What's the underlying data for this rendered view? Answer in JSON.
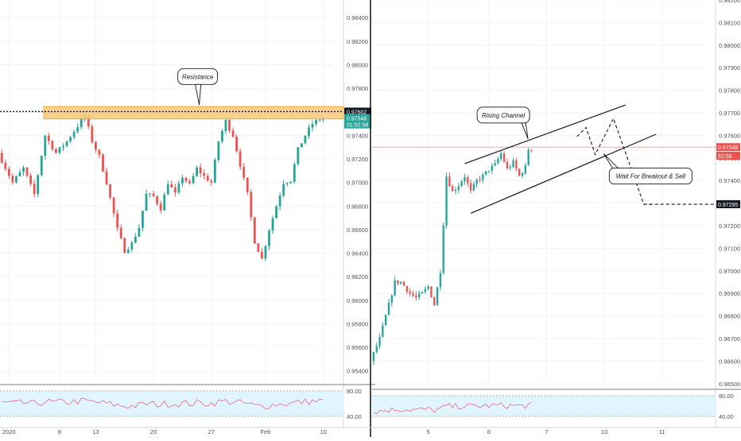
{
  "chart_data": [
    {
      "type": "candlestick",
      "title": "",
      "ylim": [
        0.9531,
        0.9855
      ],
      "yticks": [
        0.954,
        0.956,
        0.958,
        0.96,
        0.962,
        0.964,
        0.966,
        0.968,
        0.97,
        0.972,
        0.974,
        0.976,
        0.978,
        0.98,
        0.982,
        0.984
      ],
      "ytick_labels": [
        "0.95400",
        "0.95600",
        "0.95800",
        "0.96000",
        "0.96200",
        "0.96400",
        "0.96600",
        "0.96800",
        "0.97000",
        "0.97200",
        "0.97400",
        "0.97600",
        "0.97800",
        "0.98000",
        "0.98200",
        "0.98400"
      ],
      "xticks": [
        {
          "label": "2020",
          "i": 2
        },
        {
          "label": "8",
          "i": 16
        },
        {
          "label": "13",
          "i": 26
        },
        {
          "label": "20",
          "i": 42
        },
        {
          "label": "27",
          "i": 58
        },
        {
          "label": "Feb",
          "i": 73
        },
        {
          "label": "10",
          "i": 89
        }
      ],
      "price_points": [
        [
          0,
          0.9725
        ],
        [
          4,
          0.97
        ],
        [
          7,
          0.9712
        ],
        [
          10,
          0.969
        ],
        [
          13,
          0.974
        ],
        [
          16,
          0.9725
        ],
        [
          19,
          0.9735
        ],
        [
          22,
          0.9748
        ],
        [
          24,
          0.9757
        ],
        [
          26,
          0.9735
        ],
        [
          28,
          0.9722
        ],
        [
          30,
          0.97
        ],
        [
          33,
          0.966
        ],
        [
          35,
          0.9642
        ],
        [
          37,
          0.9648
        ],
        [
          39,
          0.9662
        ],
        [
          41,
          0.969
        ],
        [
          43,
          0.9688
        ],
        [
          45,
          0.9678
        ],
        [
          47,
          0.97
        ],
        [
          49,
          0.969
        ],
        [
          51,
          0.9705
        ],
        [
          53,
          0.9698
        ],
        [
          55,
          0.9712
        ],
        [
          57,
          0.9705
        ],
        [
          59,
          0.97
        ],
        [
          61,
          0.9735
        ],
        [
          63,
          0.9752
        ],
        [
          65,
          0.974
        ],
        [
          67,
          0.9715
        ],
        [
          69,
          0.969
        ],
        [
          71,
          0.965
        ],
        [
          73,
          0.9635
        ],
        [
          75,
          0.966
        ],
        [
          77,
          0.968
        ],
        [
          79,
          0.97
        ],
        [
          81,
          0.9702
        ],
        [
          83,
          0.9728
        ],
        [
          85,
          0.974
        ],
        [
          87,
          0.975
        ],
        [
          89,
          0.9754
        ]
      ],
      "candle_count": 90,
      "resistance_zone": {
        "from": 0.9754,
        "to": 0.97645,
        "color": "#f9c87a"
      },
      "resistance_line": {
        "value": 0.97602
      },
      "annotations": [
        {
          "text": "Resistance",
          "x": 54,
          "y": 0.979
        }
      ],
      "price_labels": [
        {
          "text": "0.97602",
          "value": 0.97602,
          "bg": "#131722",
          "fg": "#ffffff"
        },
        {
          "text": "0.97548",
          "value": 0.97548,
          "bg": "#26a69a",
          "fg": "#ffffff"
        },
        {
          "text": "01:52:58",
          "value": 0.97493,
          "bg": "#26a69a",
          "fg": "#ffffff"
        }
      ],
      "rsi": {
        "levels": [
          "80.00",
          "40.00"
        ]
      }
    },
    {
      "type": "candlestick",
      "title": "",
      "ylim": [
        0.9651,
        0.982
      ],
      "yticks": [
        0.965,
        0.966,
        0.967,
        0.968,
        0.969,
        0.97,
        0.971,
        0.972,
        0.973,
        0.974,
        0.975,
        0.976,
        0.977,
        0.978,
        0.979,
        0.98,
        0.981,
        0.982
      ],
      "ytick_labels": [
        "0.96500",
        "0.96600",
        "0.96700",
        "0.96800",
        "0.96900",
        "0.97000",
        "0.97100",
        "0.97200",
        "0.97300",
        "0.97400",
        "0.97500",
        "0.97600",
        "0.97700",
        "0.97800",
        "0.97900",
        "0.98000",
        "0.98100",
        "0.98200"
      ],
      "xticks": [
        {
          "label": "5",
          "i": 18
        },
        {
          "label": "6",
          "i": 38
        },
        {
          "label": "7",
          "i": 57
        },
        {
          "label": "10",
          "i": 76
        },
        {
          "label": "11",
          "i": 95
        }
      ],
      "price_points": [
        [
          0,
          0.966
        ],
        [
          3,
          0.967
        ],
        [
          6,
          0.9685
        ],
        [
          8,
          0.9695
        ],
        [
          10,
          0.9695
        ],
        [
          13,
          0.969
        ],
        [
          15,
          0.9688
        ],
        [
          17,
          0.969
        ],
        [
          19,
          0.9693
        ],
        [
          21,
          0.9685
        ],
        [
          23,
          0.97
        ],
        [
          25,
          0.9742
        ],
        [
          27,
          0.9735
        ],
        [
          29,
          0.9738
        ],
        [
          31,
          0.9742
        ],
        [
          33,
          0.9735
        ],
        [
          35,
          0.974
        ],
        [
          37,
          0.9742
        ],
        [
          39,
          0.9745
        ],
        [
          41,
          0.9747
        ],
        [
          43,
          0.9752
        ],
        [
          45,
          0.9745
        ],
        [
          47,
          0.9748
        ],
        [
          49,
          0.9742
        ],
        [
          51,
          0.9746
        ],
        [
          52,
          0.9754
        ]
      ],
      "candle_count": 53,
      "channel": {
        "upper": [
          [
            30,
            0.97475
          ],
          [
            83,
            0.97735
          ]
        ],
        "lower": [
          [
            32,
            0.97255
          ],
          [
            93,
            0.97605
          ]
        ]
      },
      "projection": [
        [
          67,
          0.97595
        ],
        [
          70,
          0.97635
        ],
        [
          73,
          0.97515
        ],
        [
          79,
          0.97675
        ],
        [
          89,
          0.97295
        ],
        [
          92,
          0.97295
        ]
      ],
      "current_line": {
        "value": 0.97548
      },
      "target_line": {
        "value": 0.97295
      },
      "annotations": [
        {
          "text": "Rising Channel",
          "x": 43,
          "y": 0.9769
        },
        {
          "text": "Wait For Breakout & Sell",
          "x": 91,
          "y": 0.9742
        }
      ],
      "price_labels": [
        {
          "text": "0.97548",
          "value": 0.97548,
          "bg": "#ef5350",
          "fg": "#ffffff"
        },
        {
          "text": "52:58",
          "value": 0.9751,
          "bg": "#ef5350",
          "fg": "#ffffff"
        },
        {
          "text": "0.97295",
          "value": 0.97295,
          "bg": "#131722",
          "fg": "#ffffff"
        }
      ],
      "rsi": {
        "levels": [
          "80.00",
          "40.00"
        ]
      }
    }
  ],
  "colors": {
    "up": "#26a69a",
    "down": "#ef5350",
    "grid": "#f0f3fa",
    "axis_text": "#50535e",
    "rsi_band": "#e1f5fe",
    "rsi_line": "#f06292"
  }
}
